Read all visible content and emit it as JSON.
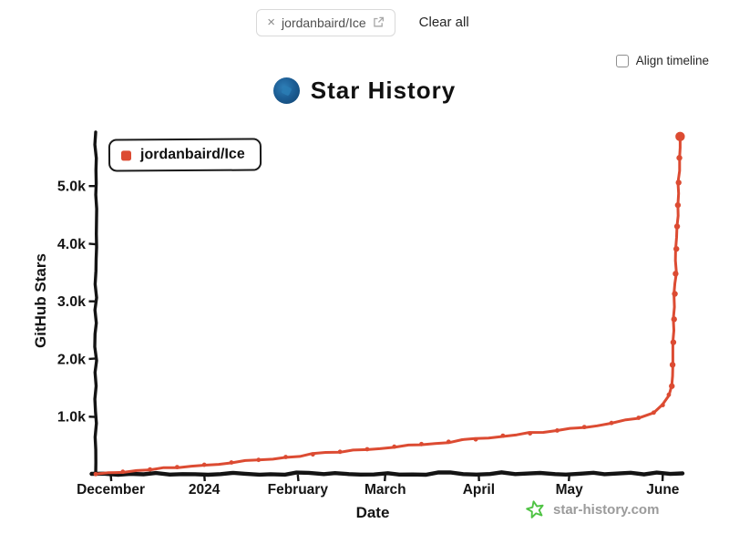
{
  "toolbar": {
    "repo_chip": {
      "close_icon": "×",
      "label": "jordanbaird/Ice"
    },
    "clear_all_label": "Clear all"
  },
  "options": {
    "align_timeline_label": "Align timeline",
    "align_timeline_checked": false
  },
  "header": {
    "title": "Star History"
  },
  "watermark": {
    "label": "star-history.com"
  },
  "colors": {
    "series": "#dc4b32",
    "axis": "#141414",
    "watermark_green": "#4fc344",
    "muted_text": "#9b9b9b"
  },
  "chart_data": {
    "type": "line",
    "title": "Star History",
    "xlabel": "Date",
    "ylabel": "GitHub Stars",
    "grid": false,
    "legend_position": "top-left",
    "x_range": [
      "2023-11-26",
      "2024-06-08"
    ],
    "ylim": [
      0,
      6050
    ],
    "x_ticks": [
      {
        "date": "2023-12-01",
        "label": "December"
      },
      {
        "date": "2024-01-01",
        "label": "2024"
      },
      {
        "date": "2024-02-01",
        "label": "February"
      },
      {
        "date": "2024-03-01",
        "label": "March"
      },
      {
        "date": "2024-04-01",
        "label": "April"
      },
      {
        "date": "2024-05-01",
        "label": "May"
      },
      {
        "date": "2024-06-01",
        "label": "June"
      }
    ],
    "y_ticks": [
      {
        "value": 1000,
        "label": "1.0k"
      },
      {
        "value": 2000,
        "label": "2.0k"
      },
      {
        "value": 3000,
        "label": "3.0k"
      },
      {
        "value": 4000,
        "label": "4.0k"
      },
      {
        "value": 5000,
        "label": "5.0k"
      }
    ],
    "series": [
      {
        "name": "jordanbaird/Ice",
        "color": "#dc4b32",
        "points": [
          [
            "2023-11-26",
            3
          ],
          [
            "2023-12-05",
            45
          ],
          [
            "2023-12-14",
            85
          ],
          [
            "2023-12-23",
            125
          ],
          [
            "2024-01-01",
            165
          ],
          [
            "2024-01-10",
            205
          ],
          [
            "2024-01-19",
            250
          ],
          [
            "2024-01-28",
            300
          ],
          [
            "2024-02-06",
            345
          ],
          [
            "2024-02-15",
            390
          ],
          [
            "2024-02-24",
            435
          ],
          [
            "2024-03-04",
            480
          ],
          [
            "2024-03-13",
            525
          ],
          [
            "2024-03-22",
            565
          ],
          [
            "2024-03-31",
            605
          ],
          [
            "2024-04-09",
            670
          ],
          [
            "2024-04-18",
            710
          ],
          [
            "2024-04-27",
            760
          ],
          [
            "2024-05-06",
            820
          ],
          [
            "2024-05-15",
            890
          ],
          [
            "2024-05-24",
            980
          ],
          [
            "2024-05-29",
            1070
          ],
          [
            "2024-06-01",
            1200
          ],
          [
            "2024-06-03",
            1380
          ],
          [
            "2024-06-04",
            1530
          ],
          [
            "2024-06-04T06:00",
            1900
          ],
          [
            "2024-06-04T12:00",
            2290
          ],
          [
            "2024-06-04T18:00",
            2690
          ],
          [
            "2024-06-05T00:00",
            3130
          ],
          [
            "2024-06-05T06:00",
            3480
          ],
          [
            "2024-06-05T12:00",
            3910
          ],
          [
            "2024-06-05T18:00",
            4300
          ],
          [
            "2024-06-06T00:00",
            4670
          ],
          [
            "2024-06-06T06:00",
            5060
          ],
          [
            "2024-06-06T12:00",
            5490
          ],
          [
            "2024-06-06T18:00",
            5860
          ]
        ]
      }
    ]
  }
}
